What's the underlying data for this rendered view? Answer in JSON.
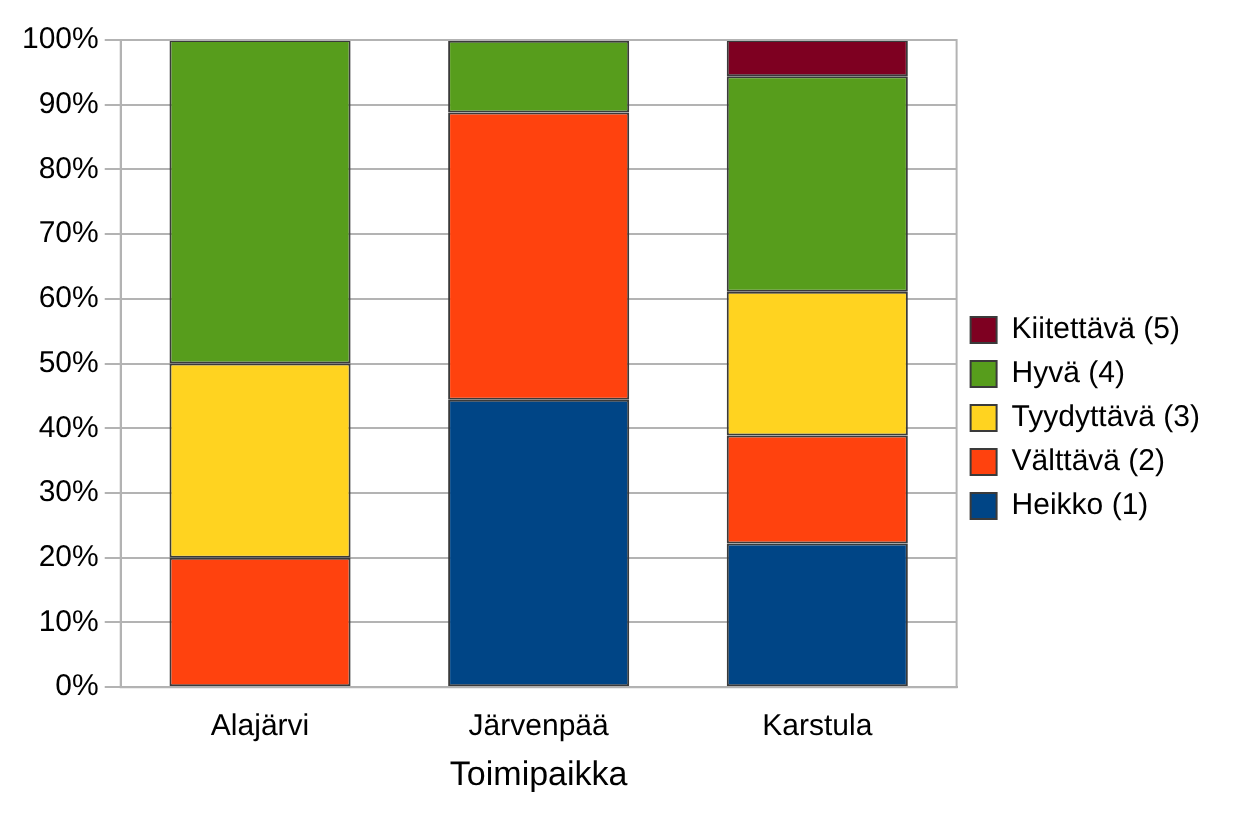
{
  "chart_data": {
    "type": "bar",
    "stacked": true,
    "xlabel": "Toimipaikka",
    "categories": [
      "Alajärvi",
      "Järvenpää",
      "Karstula"
    ],
    "series": [
      {
        "name": "Heikko (1)",
        "color": "#004586",
        "values": [
          null,
          44.4,
          22.2
        ]
      },
      {
        "name": "Välttävä (2)",
        "color": "#ff420e",
        "values": [
          20,
          44.4,
          16.7
        ]
      },
      {
        "name": "Tyydyttävä (3)",
        "color": "#ffd320",
        "values": [
          30,
          null,
          22.2
        ]
      },
      {
        "name": "Hyvä (4)",
        "color": "#579d1c",
        "values": [
          50,
          11.1,
          33.3
        ]
      },
      {
        "name": "Kiitettävä (5)",
        "color": "#7e0021",
        "values": [
          null,
          null,
          5.6
        ]
      }
    ],
    "ylim": [
      0,
      100
    ],
    "yticks": [
      {
        "value": 0,
        "label": "0%"
      },
      {
        "value": 10,
        "label": "10%"
      },
      {
        "value": 20,
        "label": "20%"
      },
      {
        "value": 30,
        "label": "30%"
      },
      {
        "value": 40,
        "label": "40%"
      },
      {
        "value": 50,
        "label": "50%"
      },
      {
        "value": 60,
        "label": "60%"
      },
      {
        "value": 70,
        "label": "70%"
      },
      {
        "value": 80,
        "label": "80%"
      },
      {
        "value": 90,
        "label": "90%"
      },
      {
        "value": 100,
        "label": "100%"
      }
    ],
    "grid": "y",
    "legend": "right"
  }
}
